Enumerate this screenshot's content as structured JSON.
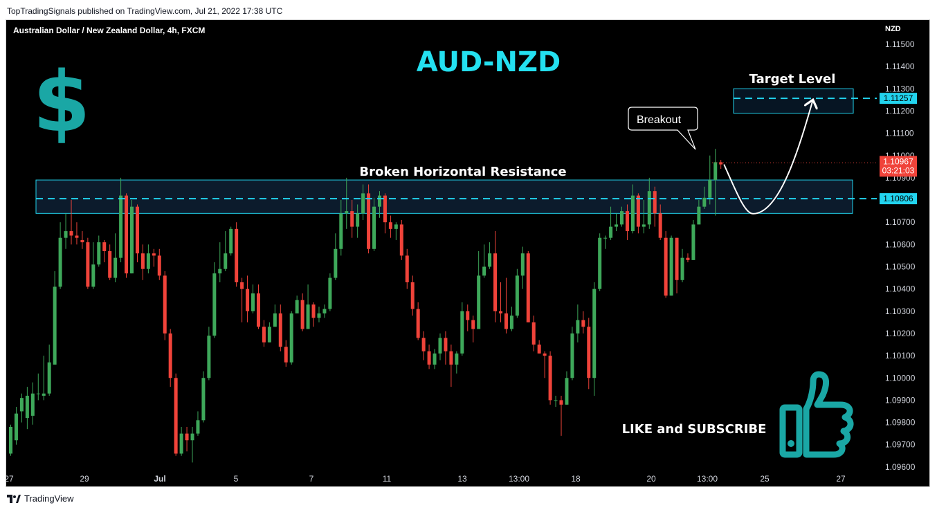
{
  "header": {
    "published": "TopTradingSignals published on TradingView.com, Jul 21, 2022 17:38 UTC"
  },
  "footer": {
    "brand": "TradingView",
    "logo_icon": "tradingview-logo-icon"
  },
  "chart": {
    "symbol_title": "Australian Dollar / New Zealand Dollar, 4h, FXCM",
    "currency": "NZD",
    "big_title": "AUD-NZD",
    "resistance_label": "Broken Horizontal Resistance",
    "target_label": "Target Level",
    "breakout_label": "Breakout",
    "cta_label": "LIKE and SUBSCRIBE",
    "dollar_symbol": "$",
    "thumb_icon": "thumbs-up-icon",
    "current_price": "1.10967",
    "countdown": "03:21:03",
    "target_price": "1.11257",
    "resistance_price": "1.10806",
    "colors": {
      "up": "#26a69a",
      "up_candle": "#3ea85a",
      "down": "#f0433a",
      "teal": "#1aa7a5",
      "cyan": "#22d3ee",
      "title": "#24e0f0"
    }
  },
  "chart_data": {
    "type": "candlestick",
    "title": "Australian Dollar / New Zealand Dollar, 4h, FXCM",
    "ylabel": "NZD",
    "ylim": [
      1.0958,
      1.1164
    ],
    "y_ticks": [
      "1.11500",
      "1.11400",
      "1.11300",
      "1.11200",
      "1.11100",
      "1.11000",
      "1.10900",
      "1.10800",
      "1.10700",
      "1.10600",
      "1.10500",
      "1.10400",
      "1.10300",
      "1.10200",
      "1.10100",
      "1.10000",
      "1.09900",
      "1.09800",
      "1.09700",
      "1.09600"
    ],
    "x_ticks": [
      "27",
      "29",
      "Jul",
      "5",
      "7",
      "11",
      "13",
      "13:00",
      "18",
      "20",
      "13:00",
      "25",
      "27"
    ],
    "levels": {
      "resistance": 1.10806,
      "target": 1.11257,
      "last": 1.10967
    },
    "zones": {
      "resistance": [
        1.1074,
        1.1089
      ],
      "target": [
        1.1119,
        1.113
      ]
    },
    "projection": {
      "dip": 1.1076,
      "target": 1.11257
    },
    "candles": [
      [
        1.0966,
        1.0978,
        1.0965,
        1.0979
      ],
      [
        1.0972,
        1.0984,
        1.097,
        1.0987
      ],
      [
        1.0985,
        1.0991,
        1.098,
        1.0993
      ],
      [
        1.0982,
        1.0992,
        1.0977,
        1.0996
      ],
      [
        1.0983,
        1.0993,
        1.0979,
        1.0998
      ],
      [
        1.0993,
        1.0993,
        1.099,
        1.1002
      ],
      [
        1.0992,
        1.0993,
        1.099,
        1.101
      ],
      [
        1.0993,
        1.1007,
        1.0992,
        1.1015
      ],
      [
        1.1006,
        1.1041,
        1.1006,
        1.1048
      ],
      [
        1.1041,
        1.1063,
        1.104,
        1.107
      ],
      [
        1.1063,
        1.1066,
        1.1058,
        1.1074
      ],
      [
        1.1066,
        1.1064,
        1.106,
        1.108
      ],
      [
        1.1064,
        1.1063,
        1.106,
        1.107
      ],
      [
        1.1062,
        1.1061,
        1.1058,
        1.1066
      ],
      [
        1.1061,
        1.1041,
        1.104,
        1.1063
      ],
      [
        1.1041,
        1.1051,
        1.104,
        1.1061
      ],
      [
        1.1051,
        1.1061,
        1.105,
        1.1064
      ],
      [
        1.1061,
        1.1057,
        1.1052,
        1.1062
      ],
      [
        1.1057,
        1.1045,
        1.1044,
        1.106
      ],
      [
        1.1045,
        1.1054,
        1.1043,
        1.1065
      ],
      [
        1.1054,
        1.1082,
        1.1052,
        1.109
      ],
      [
        1.1082,
        1.1047,
        1.1045,
        1.1083
      ],
      [
        1.1047,
        1.1077,
        1.1047,
        1.108
      ],
      [
        1.1077,
        1.1056,
        1.1052,
        1.1078
      ],
      [
        1.1056,
        1.1049,
        1.1044,
        1.106
      ],
      [
        1.1049,
        1.1056,
        1.1047,
        1.106
      ],
      [
        1.1056,
        1.1055,
        1.105,
        1.1058
      ],
      [
        1.1055,
        1.1046,
        1.1044,
        1.1058
      ],
      [
        1.1046,
        1.102,
        1.1017,
        1.1048
      ],
      [
        1.102,
        1.1,
        1.0996,
        1.1022
      ],
      [
        1.1,
        1.0966,
        1.0965,
        1.1002
      ],
      [
        1.0966,
        1.0975,
        1.0965,
        1.0978
      ],
      [
        1.0975,
        1.0972,
        1.0967,
        1.0978
      ],
      [
        1.0972,
        1.0975,
        1.0962,
        1.0978
      ],
      [
        1.0975,
        1.0981,
        1.0974,
        1.0985
      ],
      [
        1.0981,
        1.1,
        1.098,
        1.1003
      ],
      [
        1.1,
        1.1019,
        1.0999,
        1.1023
      ],
      [
        1.1019,
        1.1047,
        1.1018,
        1.1052
      ],
      [
        1.1047,
        1.1049,
        1.1043,
        1.1061
      ],
      [
        1.1049,
        1.1056,
        1.1048,
        1.1066
      ],
      [
        1.1056,
        1.1067,
        1.1055,
        1.1068
      ],
      [
        1.1067,
        1.1043,
        1.1041,
        1.107
      ],
      [
        1.1043,
        1.104,
        1.1025,
        1.1045
      ],
      [
        1.104,
        1.103,
        1.1025,
        1.1046
      ],
      [
        1.103,
        1.1038,
        1.1029,
        1.1042
      ],
      [
        1.1038,
        1.1023,
        1.1022,
        1.1042
      ],
      [
        1.1023,
        1.1016,
        1.1014,
        1.1026
      ],
      [
        1.1016,
        1.1023,
        1.1016,
        1.1025
      ],
      [
        1.1023,
        1.1029,
        1.1023,
        1.1033
      ],
      [
        1.1029,
        1.1014,
        1.1012,
        1.1033
      ],
      [
        1.1014,
        1.1007,
        1.1005,
        1.1017
      ],
      [
        1.1007,
        1.1029,
        1.1006,
        1.103
      ],
      [
        1.1029,
        1.1035,
        1.1029,
        1.1037
      ],
      [
        1.1035,
        1.1022,
        1.1021,
        1.1038
      ],
      [
        1.1022,
        1.1033,
        1.1022,
        1.1042
      ],
      [
        1.1033,
        1.1027,
        1.1023,
        1.1034
      ],
      [
        1.1027,
        1.1029,
        1.1025,
        1.1032
      ],
      [
        1.1029,
        1.1031,
        1.1027,
        1.1033
      ],
      [
        1.1031,
        1.1045,
        1.103,
        1.1047
      ],
      [
        1.1045,
        1.1058,
        1.1044,
        1.1065
      ],
      [
        1.1058,
        1.1074,
        1.1055,
        1.108
      ],
      [
        1.1074,
        1.1075,
        1.1067,
        1.109
      ],
      [
        1.1075,
        1.1068,
        1.1063,
        1.108
      ],
      [
        1.1068,
        1.1074,
        1.1063,
        1.1078
      ],
      [
        1.1074,
        1.1083,
        1.1071,
        1.1087
      ],
      [
        1.1083,
        1.1058,
        1.1056,
        1.1087
      ],
      [
        1.1058,
        1.1077,
        1.1057,
        1.1081
      ],
      [
        1.1077,
        1.1082,
        1.1072,
        1.1084
      ],
      [
        1.1082,
        1.107,
        1.1065,
        1.1083
      ],
      [
        1.107,
        1.1067,
        1.1063,
        1.1073
      ],
      [
        1.1067,
        1.1069,
        1.1062,
        1.107
      ],
      [
        1.1069,
        1.1055,
        1.1053,
        1.1071
      ],
      [
        1.1055,
        1.1043,
        1.104,
        1.1058
      ],
      [
        1.1043,
        1.1031,
        1.1028,
        1.1046
      ],
      [
        1.1031,
        1.1018,
        1.1017,
        1.1034
      ],
      [
        1.1018,
        1.1012,
        1.1008,
        1.1021
      ],
      [
        1.1012,
        1.1006,
        1.1004,
        1.1015
      ],
      [
        1.1006,
        1.1011,
        1.1004,
        1.1013
      ],
      [
        1.1011,
        1.1018,
        1.1008,
        1.102
      ],
      [
        1.1018,
        1.1012,
        1.1006,
        1.1021
      ],
      [
        1.1012,
        1.1006,
        1.0996,
        1.1015
      ],
      [
        1.1006,
        1.1011,
        1.1002,
        1.1012
      ],
      [
        1.1011,
        1.103,
        1.101,
        1.1034
      ],
      [
        1.103,
        1.1026,
        1.1021,
        1.1033
      ],
      [
        1.1026,
        1.1022,
        1.1016,
        1.1028
      ],
      [
        1.1022,
        1.1046,
        1.1022,
        1.1057
      ],
      [
        1.1046,
        1.105,
        1.1045,
        1.106
      ],
      [
        1.105,
        1.1056,
        1.1049,
        1.1061
      ],
      [
        1.1056,
        1.103,
        1.1025,
        1.1066
      ],
      [
        1.103,
        1.1029,
        1.1025,
        1.1043
      ],
      [
        1.1029,
        1.1022,
        1.102,
        1.1045
      ],
      [
        1.1022,
        1.1028,
        1.1021,
        1.1032
      ],
      [
        1.1028,
        1.1046,
        1.1027,
        1.1049
      ],
      [
        1.1046,
        1.1056,
        1.104,
        1.1059
      ],
      [
        1.1056,
        1.1025,
        1.1025,
        1.1057
      ],
      [
        1.1025,
        1.1015,
        1.1012,
        1.1028
      ],
      [
        1.1015,
        1.1011,
        1.1011,
        1.1017
      ],
      [
        1.1011,
        1.101,
        1.1,
        1.1012
      ],
      [
        1.101,
        1.099,
        1.0988,
        1.1012
      ],
      [
        1.099,
        1.099,
        1.0987,
        1.0992
      ],
      [
        1.099,
        1.0988,
        1.0974,
        1.0992
      ],
      [
        1.0988,
        1.1,
        1.0988,
        1.1003
      ],
      [
        1.1,
        1.102,
        1.0999,
        1.1023
      ],
      [
        1.102,
        1.1026,
        1.1016,
        1.1033
      ],
      [
        1.1026,
        1.1023,
        1.102,
        1.103
      ],
      [
        1.1023,
        1.1,
        1.0995,
        1.1027
      ],
      [
        1.1,
        1.104,
        1.0992,
        1.1043
      ],
      [
        1.104,
        1.1063,
        1.1039,
        1.1065
      ],
      [
        1.1063,
        1.1063,
        1.1058,
        1.1064
      ],
      [
        1.1063,
        1.1068,
        1.1062,
        1.1077
      ],
      [
        1.1068,
        1.1069,
        1.1066,
        1.1074
      ],
      [
        1.1069,
        1.1075,
        1.1068,
        1.1077
      ],
      [
        1.1075,
        1.1066,
        1.1062,
        1.1078
      ],
      [
        1.1066,
        1.1082,
        1.1065,
        1.1087
      ],
      [
        1.1082,
        1.1068,
        1.1065,
        1.1083
      ],
      [
        1.1068,
        1.1069,
        1.1065,
        1.108
      ],
      [
        1.1069,
        1.1084,
        1.1067,
        1.109
      ],
      [
        1.1084,
        1.1074,
        1.1068,
        1.1086
      ],
      [
        1.1074,
        1.1063,
        1.1062,
        1.1078
      ],
      [
        1.1063,
        1.1037,
        1.1036,
        1.1066
      ],
      [
        1.1037,
        1.1063,
        1.1037,
        1.1064
      ],
      [
        1.1063,
        1.1044,
        1.1038,
        1.1063
      ],
      [
        1.1044,
        1.1054,
        1.1043,
        1.1058
      ],
      [
        1.1054,
        1.1053,
        1.1052,
        1.1056
      ],
      [
        1.1053,
        1.1069,
        1.1053,
        1.1071
      ],
      [
        1.1069,
        1.1077,
        1.1069,
        1.108
      ],
      [
        1.1077,
        1.1081,
        1.1076,
        1.1086
      ],
      [
        1.1081,
        1.1089,
        1.1078,
        1.11
      ],
      [
        1.1089,
        1.1097,
        1.1073,
        1.1103
      ],
      [
        1.1097,
        1.1096,
        1.1094,
        1.1098
      ]
    ]
  }
}
